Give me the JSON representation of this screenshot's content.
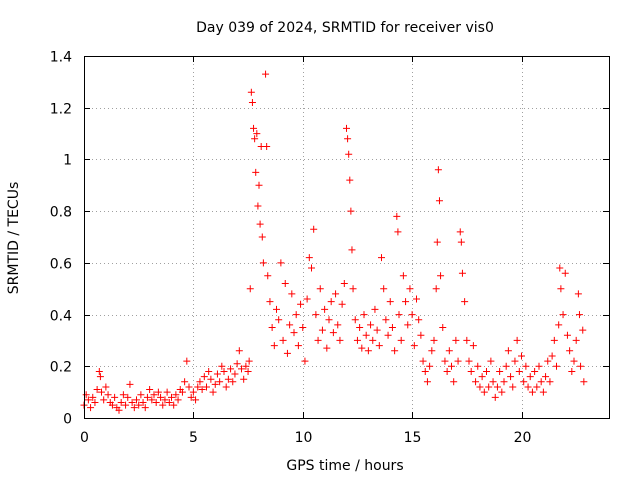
{
  "chart_data": {
    "type": "scatter",
    "title": "Day 039 of 2024, SRMTID for receiver vis0",
    "xlabel": "GPS time / hours",
    "ylabel": "SRMTID / TECUs",
    "xlim": [
      0,
      24
    ],
    "ylim": [
      0,
      1.4
    ],
    "xticks": [
      0,
      5,
      10,
      15,
      20
    ],
    "yticks": [
      0,
      0.2,
      0.4,
      0.6,
      0.8,
      1,
      1.2,
      1.4
    ],
    "xtick_labels": [
      "0",
      "5",
      "10",
      "15",
      "20"
    ],
    "ytick_labels": [
      "0",
      "0.2",
      "0.4",
      "0.6",
      "0.8",
      "1",
      "1.2",
      "1.4"
    ],
    "grid": true,
    "marker": "+",
    "series": [
      {
        "name": "vis0",
        "color": "#ff0000",
        "points": [
          [
            0.0,
            0.05
          ],
          [
            0.1,
            0.09
          ],
          [
            0.2,
            0.07
          ],
          [
            0.3,
            0.04
          ],
          [
            0.4,
            0.08
          ],
          [
            0.5,
            0.06
          ],
          [
            0.6,
            0.11
          ],
          [
            0.7,
            0.18
          ],
          [
            0.75,
            0.16
          ],
          [
            0.8,
            0.1
          ],
          [
            0.9,
            0.07
          ],
          [
            1.0,
            0.12
          ],
          [
            1.1,
            0.09
          ],
          [
            1.2,
            0.06
          ],
          [
            1.3,
            0.05
          ],
          [
            1.4,
            0.08
          ],
          [
            1.5,
            0.04
          ],
          [
            1.6,
            0.03
          ],
          [
            1.7,
            0.06
          ],
          [
            1.8,
            0.09
          ],
          [
            1.9,
            0.05
          ],
          [
            2.0,
            0.08
          ],
          [
            2.1,
            0.13
          ],
          [
            2.2,
            0.06
          ],
          [
            2.3,
            0.04
          ],
          [
            2.4,
            0.07
          ],
          [
            2.5,
            0.05
          ],
          [
            2.6,
            0.09
          ],
          [
            2.7,
            0.06
          ],
          [
            2.8,
            0.04
          ],
          [
            2.9,
            0.08
          ],
          [
            3.0,
            0.11
          ],
          [
            3.1,
            0.07
          ],
          [
            3.2,
            0.09
          ],
          [
            3.3,
            0.06
          ],
          [
            3.4,
            0.1
          ],
          [
            3.5,
            0.08
          ],
          [
            3.6,
            0.05
          ],
          [
            3.7,
            0.07
          ],
          [
            3.8,
            0.1
          ],
          [
            3.9,
            0.06
          ],
          [
            4.0,
            0.08
          ],
          [
            4.1,
            0.05
          ],
          [
            4.2,
            0.09
          ],
          [
            4.3,
            0.07
          ],
          [
            4.4,
            0.11
          ],
          [
            4.5,
            0.1
          ],
          [
            4.6,
            0.14
          ],
          [
            4.7,
            0.22
          ],
          [
            4.8,
            0.12
          ],
          [
            4.9,
            0.08
          ],
          [
            5.0,
            0.1
          ],
          [
            5.1,
            0.07
          ],
          [
            5.2,
            0.12
          ],
          [
            5.3,
            0.14
          ],
          [
            5.4,
            0.11
          ],
          [
            5.5,
            0.16
          ],
          [
            5.6,
            0.12
          ],
          [
            5.7,
            0.18
          ],
          [
            5.8,
            0.15
          ],
          [
            5.9,
            0.1
          ],
          [
            6.0,
            0.13
          ],
          [
            6.1,
            0.17
          ],
          [
            6.2,
            0.14
          ],
          [
            6.3,
            0.2
          ],
          [
            6.4,
            0.18
          ],
          [
            6.5,
            0.12
          ],
          [
            6.6,
            0.15
          ],
          [
            6.7,
            0.19
          ],
          [
            6.8,
            0.14
          ],
          [
            6.9,
            0.17
          ],
          [
            7.0,
            0.21
          ],
          [
            7.1,
            0.26
          ],
          [
            7.2,
            0.19
          ],
          [
            7.3,
            0.15
          ],
          [
            7.4,
            0.2
          ],
          [
            7.5,
            0.18
          ],
          [
            7.55,
            0.22
          ],
          [
            7.6,
            0.5
          ],
          [
            7.65,
            1.26
          ],
          [
            7.7,
            1.22
          ],
          [
            7.75,
            1.12
          ],
          [
            7.8,
            1.08
          ],
          [
            7.85,
            0.95
          ],
          [
            7.9,
            1.1
          ],
          [
            7.95,
            0.82
          ],
          [
            8.0,
            0.9
          ],
          [
            8.05,
            0.75
          ],
          [
            8.1,
            1.05
          ],
          [
            8.15,
            0.7
          ],
          [
            8.2,
            0.6
          ],
          [
            8.3,
            1.33
          ],
          [
            8.35,
            1.05
          ],
          [
            8.4,
            0.55
          ],
          [
            8.5,
            0.45
          ],
          [
            8.6,
            0.35
          ],
          [
            8.7,
            0.28
          ],
          [
            8.8,
            0.42
          ],
          [
            8.9,
            0.38
          ],
          [
            9.0,
            0.6
          ],
          [
            9.1,
            0.3
          ],
          [
            9.2,
            0.52
          ],
          [
            9.3,
            0.25
          ],
          [
            9.4,
            0.36
          ],
          [
            9.5,
            0.48
          ],
          [
            9.6,
            0.33
          ],
          [
            9.7,
            0.4
          ],
          [
            9.8,
            0.28
          ],
          [
            9.9,
            0.44
          ],
          [
            10.0,
            0.35
          ],
          [
            10.1,
            0.22
          ],
          [
            10.2,
            0.46
          ],
          [
            10.3,
            0.62
          ],
          [
            10.4,
            0.58
          ],
          [
            10.5,
            0.73
          ],
          [
            10.6,
            0.4
          ],
          [
            10.7,
            0.3
          ],
          [
            10.8,
            0.5
          ],
          [
            10.9,
            0.34
          ],
          [
            11.0,
            0.42
          ],
          [
            11.1,
            0.27
          ],
          [
            11.2,
            0.38
          ],
          [
            11.3,
            0.45
          ],
          [
            11.4,
            0.33
          ],
          [
            11.5,
            0.48
          ],
          [
            11.6,
            0.36
          ],
          [
            11.7,
            0.3
          ],
          [
            11.8,
            0.44
          ],
          [
            11.9,
            0.52
          ],
          [
            12.0,
            1.12
          ],
          [
            12.05,
            1.08
          ],
          [
            12.1,
            1.02
          ],
          [
            12.15,
            0.92
          ],
          [
            12.2,
            0.8
          ],
          [
            12.25,
            0.65
          ],
          [
            12.3,
            0.5
          ],
          [
            12.4,
            0.38
          ],
          [
            12.5,
            0.3
          ],
          [
            12.6,
            0.35
          ],
          [
            12.7,
            0.27
          ],
          [
            12.8,
            0.4
          ],
          [
            12.9,
            0.32
          ],
          [
            13.0,
            0.26
          ],
          [
            13.1,
            0.36
          ],
          [
            13.2,
            0.3
          ],
          [
            13.3,
            0.42
          ],
          [
            13.4,
            0.34
          ],
          [
            13.5,
            0.28
          ],
          [
            13.6,
            0.62
          ],
          [
            13.7,
            0.5
          ],
          [
            13.8,
            0.38
          ],
          [
            13.9,
            0.32
          ],
          [
            14.0,
            0.45
          ],
          [
            14.1,
            0.35
          ],
          [
            14.2,
            0.26
          ],
          [
            14.3,
            0.78
          ],
          [
            14.35,
            0.72
          ],
          [
            14.4,
            0.4
          ],
          [
            14.5,
            0.3
          ],
          [
            14.6,
            0.55
          ],
          [
            14.7,
            0.45
          ],
          [
            14.8,
            0.36
          ],
          [
            14.9,
            0.5
          ],
          [
            15.0,
            0.4
          ],
          [
            15.1,
            0.28
          ],
          [
            15.2,
            0.46
          ],
          [
            15.3,
            0.38
          ],
          [
            15.4,
            0.32
          ],
          [
            15.5,
            0.22
          ],
          [
            15.6,
            0.18
          ],
          [
            15.7,
            0.14
          ],
          [
            15.8,
            0.2
          ],
          [
            15.9,
            0.26
          ],
          [
            16.0,
            0.3
          ],
          [
            16.1,
            0.5
          ],
          [
            16.15,
            0.68
          ],
          [
            16.2,
            0.96
          ],
          [
            16.25,
            0.84
          ],
          [
            16.3,
            0.55
          ],
          [
            16.4,
            0.35
          ],
          [
            16.5,
            0.22
          ],
          [
            16.6,
            0.18
          ],
          [
            16.7,
            0.26
          ],
          [
            16.8,
            0.2
          ],
          [
            16.9,
            0.14
          ],
          [
            17.0,
            0.3
          ],
          [
            17.1,
            0.22
          ],
          [
            17.2,
            0.72
          ],
          [
            17.25,
            0.68
          ],
          [
            17.3,
            0.56
          ],
          [
            17.4,
            0.45
          ],
          [
            17.5,
            0.3
          ],
          [
            17.6,
            0.22
          ],
          [
            17.7,
            0.18
          ],
          [
            17.8,
            0.28
          ],
          [
            17.9,
            0.14
          ],
          [
            18.0,
            0.2
          ],
          [
            18.1,
            0.12
          ],
          [
            18.2,
            0.16
          ],
          [
            18.3,
            0.1
          ],
          [
            18.4,
            0.18
          ],
          [
            18.5,
            0.12
          ],
          [
            18.6,
            0.22
          ],
          [
            18.7,
            0.14
          ],
          [
            18.8,
            0.08
          ],
          [
            18.9,
            0.12
          ],
          [
            19.0,
            0.18
          ],
          [
            19.1,
            0.1
          ],
          [
            19.2,
            0.14
          ],
          [
            19.3,
            0.2
          ],
          [
            19.4,
            0.26
          ],
          [
            19.5,
            0.16
          ],
          [
            19.6,
            0.12
          ],
          [
            19.7,
            0.22
          ],
          [
            19.8,
            0.3
          ],
          [
            19.9,
            0.18
          ],
          [
            20.0,
            0.24
          ],
          [
            20.1,
            0.14
          ],
          [
            20.2,
            0.2
          ],
          [
            20.3,
            0.12
          ],
          [
            20.4,
            0.16
          ],
          [
            20.5,
            0.1
          ],
          [
            20.6,
            0.18
          ],
          [
            20.7,
            0.12
          ],
          [
            20.8,
            0.2
          ],
          [
            20.9,
            0.14
          ],
          [
            21.0,
            0.1
          ],
          [
            21.1,
            0.16
          ],
          [
            21.2,
            0.22
          ],
          [
            21.3,
            0.14
          ],
          [
            21.4,
            0.24
          ],
          [
            21.5,
            0.3
          ],
          [
            21.6,
            0.2
          ],
          [
            21.7,
            0.36
          ],
          [
            21.75,
            0.58
          ],
          [
            21.8,
            0.5
          ],
          [
            21.9,
            0.4
          ],
          [
            22.0,
            0.56
          ],
          [
            22.1,
            0.32
          ],
          [
            22.2,
            0.26
          ],
          [
            22.3,
            0.18
          ],
          [
            22.4,
            0.22
          ],
          [
            22.5,
            0.3
          ],
          [
            22.6,
            0.48
          ],
          [
            22.65,
            0.4
          ],
          [
            22.7,
            0.2
          ],
          [
            22.8,
            0.34
          ],
          [
            22.85,
            0.14
          ]
        ]
      }
    ]
  }
}
